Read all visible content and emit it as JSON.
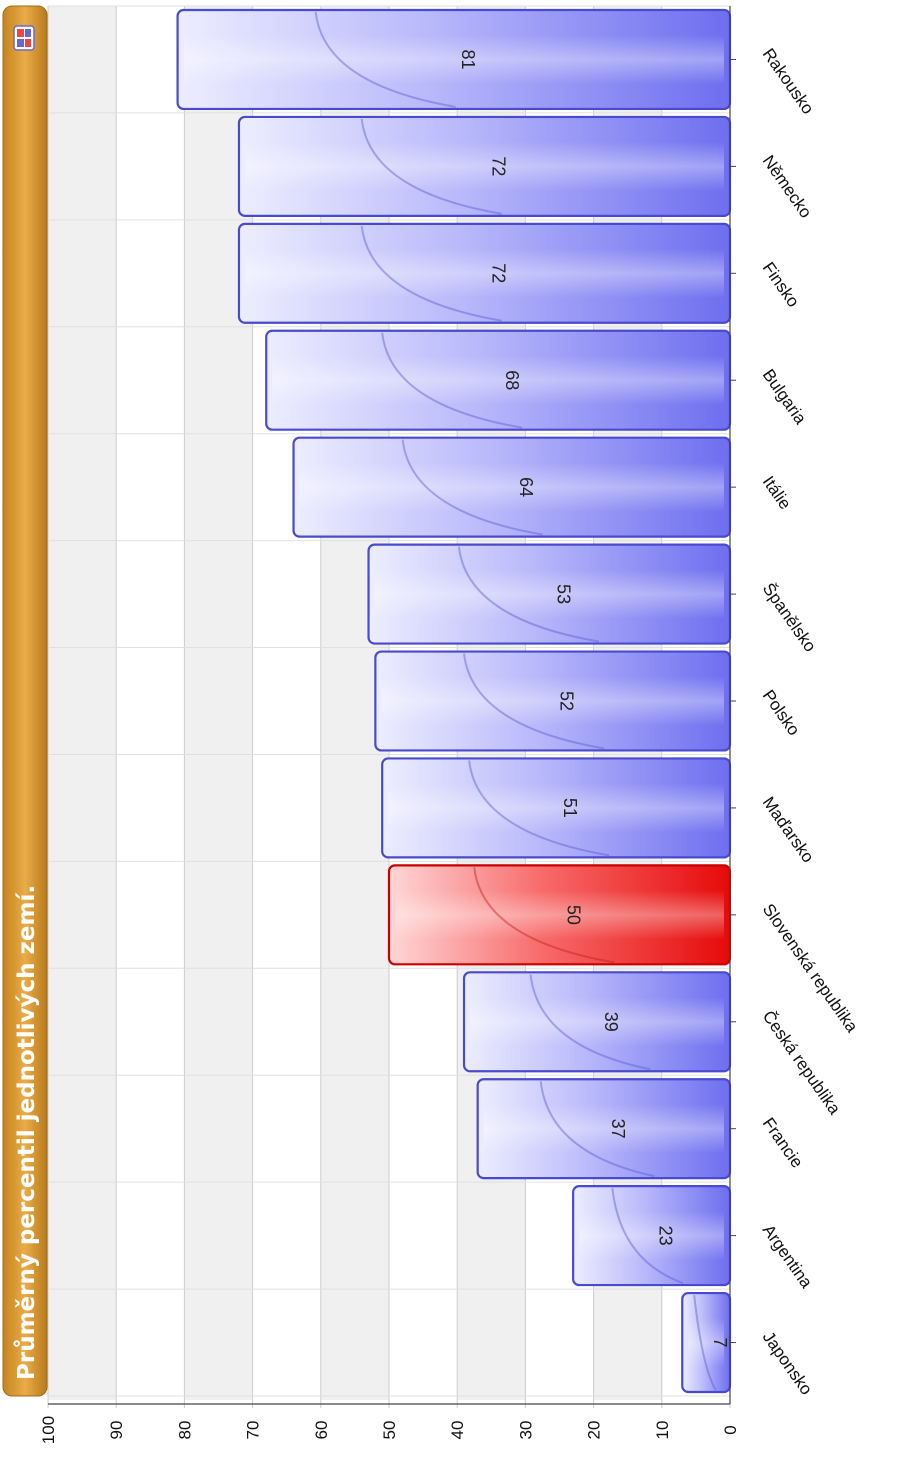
{
  "title": "Průměrný percentil jednotlivých zemí.",
  "colors": {
    "bar": "#7b7bf2",
    "bar_light": "#e8e8ff",
    "bar_edge": "#4a4ad0",
    "highlight": "#ee1010",
    "highlight_light": "#ffc4c4",
    "highlight_edge": "#c80000",
    "title_bg": "#e2a23a",
    "title_bg_dark": "#b87a1c",
    "band": "#f0f0f0",
    "grid": "#cccccc"
  },
  "chart_data": {
    "type": "bar",
    "orientation": "horizontal",
    "categories": [
      "Rakousko",
      "Německo",
      "Finsko",
      "Bulgaria",
      "Itálie",
      "Španělsko",
      "Polsko",
      "Maďarsko",
      "Slovenská republika",
      "Česká republika",
      "Francie",
      "Argentina",
      "Japonsko"
    ],
    "values": [
      81,
      72,
      72,
      68,
      64,
      53,
      52,
      51,
      50,
      39,
      37,
      23,
      7
    ],
    "highlight": "Slovenská republika",
    "xlim": [
      0,
      100
    ],
    "ticks": [
      0,
      10,
      20,
      30,
      40,
      50,
      60,
      70,
      80,
      90,
      100
    ],
    "grid": true,
    "legend": "none"
  }
}
